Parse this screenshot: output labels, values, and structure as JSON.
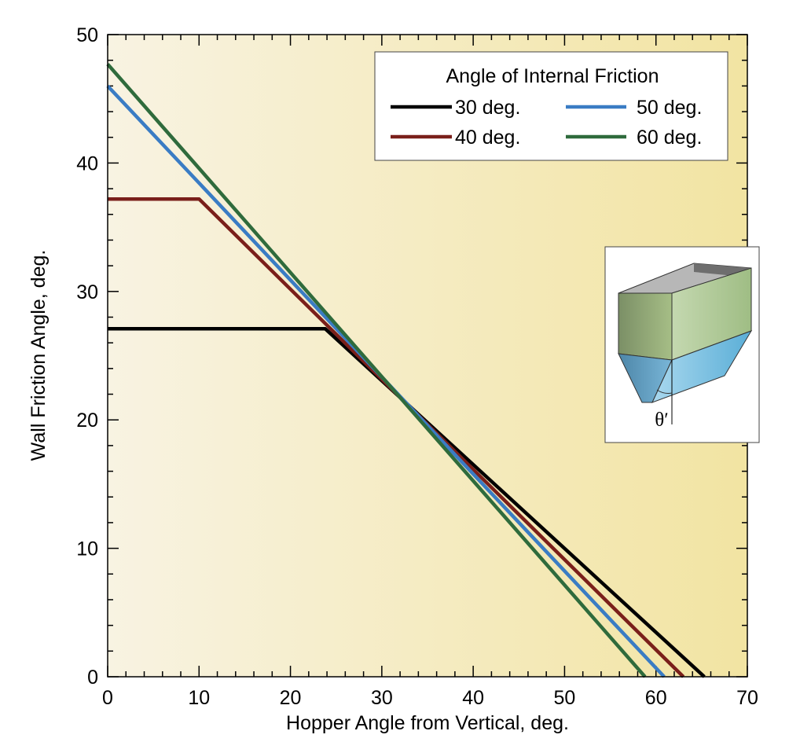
{
  "chart_data": {
    "type": "line",
    "title": "",
    "xlabel": "Hopper Angle from Vertical, deg.",
    "ylabel": "Wall Friction Angle, deg.",
    "xlim": [
      0,
      70
    ],
    "ylim": [
      0,
      50
    ],
    "xticks": [
      0,
      10,
      20,
      30,
      40,
      50,
      60,
      70
    ],
    "yticks": [
      0,
      10,
      20,
      30,
      40,
      50
    ],
    "grid": false,
    "legend_title": "Angle of Internal Friction",
    "legend_position": "top-right",
    "background": "gradient cream to yellow",
    "series": [
      {
        "name": "30 deg.",
        "color": "#000000",
        "points": [
          [
            0,
            27.1
          ],
          [
            23.8,
            27.1
          ],
          [
            65.3,
            0
          ]
        ]
      },
      {
        "name": "40 deg.",
        "color": "#7a1f1a",
        "points": [
          [
            0,
            37.2
          ],
          [
            10,
            37.2
          ],
          [
            63.0,
            0
          ]
        ]
      },
      {
        "name": "50 deg.",
        "color": "#3a7cc4",
        "points": [
          [
            0,
            46.0
          ],
          [
            60.9,
            0
          ]
        ]
      },
      {
        "name": "60 deg.",
        "color": "#2f6b3c",
        "points": [
          [
            0,
            47.7
          ],
          [
            58.8,
            0
          ]
        ]
      }
    ],
    "inset": {
      "label": "θ′",
      "icon": "wedge-hopper-icon"
    }
  }
}
